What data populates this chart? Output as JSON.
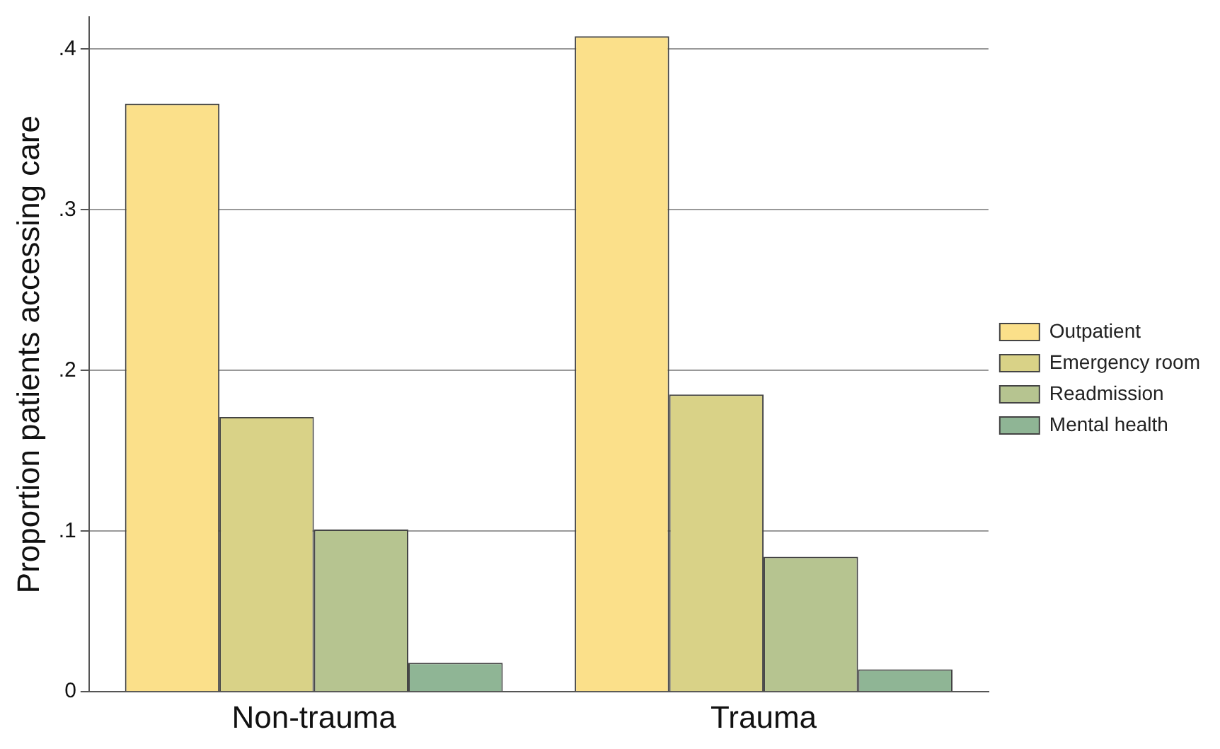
{
  "chart_data": {
    "type": "bar",
    "ylabel": "Proportion patients accessing care",
    "categories": [
      "Non-trauma",
      "Trauma"
    ],
    "series": [
      {
        "name": "Outpatient",
        "color": "#fbe08a",
        "values": [
          0.366,
          0.408
        ]
      },
      {
        "name": "Emergency room",
        "color": "#d9d287",
        "values": [
          0.171,
          0.185
        ]
      },
      {
        "name": "Readmission",
        "color": "#b6c490",
        "values": [
          0.101,
          0.084
        ]
      },
      {
        "name": "Mental health",
        "color": "#8fb595",
        "values": [
          0.018,
          0.014
        ]
      }
    ],
    "ylim": [
      0,
      0.42
    ],
    "yticks": [
      {
        "value": 0,
        "label": "0"
      },
      {
        "value": 0.1,
        "label": ".1"
      },
      {
        "value": 0.2,
        "label": ".2"
      },
      {
        "value": 0.3,
        "label": ".3"
      },
      {
        "value": 0.4,
        "label": ".4"
      }
    ],
    "grid": "y",
    "legend": "right"
  }
}
